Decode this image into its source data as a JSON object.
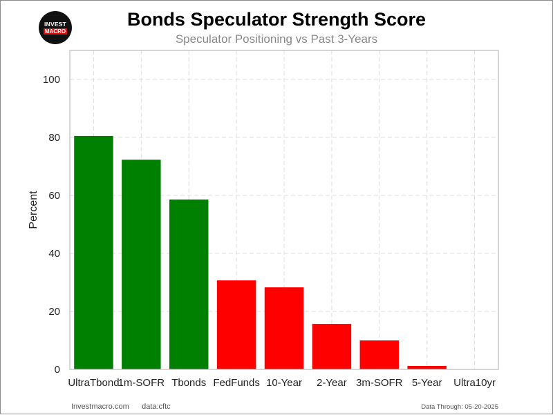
{
  "logo": {
    "line1": "INVEST",
    "line2": "MACRO"
  },
  "footer": {
    "site": "Investmacro.com",
    "source": "data:cftc",
    "data_through": "Data Through: 05-20-2025"
  },
  "colors": {
    "positive": "#008000",
    "negative": "#ff0000",
    "grid": "#dcdcdc",
    "axis": "#c8c8c8"
  },
  "chart_data": {
    "type": "bar",
    "title": "Bonds Speculator Strength Score",
    "subtitle": "Speculator Positioning vs Past 3-Years",
    "xlabel": "",
    "ylabel": "Percent",
    "categories": [
      "UltraTbond",
      "1m-SOFR",
      "Tbonds",
      "FedFunds",
      "10-Year",
      "2-Year",
      "3m-SOFR",
      "5-Year",
      "Ultra10yr"
    ],
    "values": [
      80.5,
      72.3,
      58.6,
      30.7,
      28.3,
      15.7,
      10.0,
      1.2,
      0
    ],
    "bar_colors": [
      "#008000",
      "#008000",
      "#008000",
      "#ff0000",
      "#ff0000",
      "#ff0000",
      "#ff0000",
      "#ff0000",
      "#ff0000"
    ],
    "ylim": [
      0,
      110
    ],
    "yticks": [
      0,
      20,
      40,
      60,
      80,
      100
    ],
    "grid": true,
    "legend": "none"
  }
}
